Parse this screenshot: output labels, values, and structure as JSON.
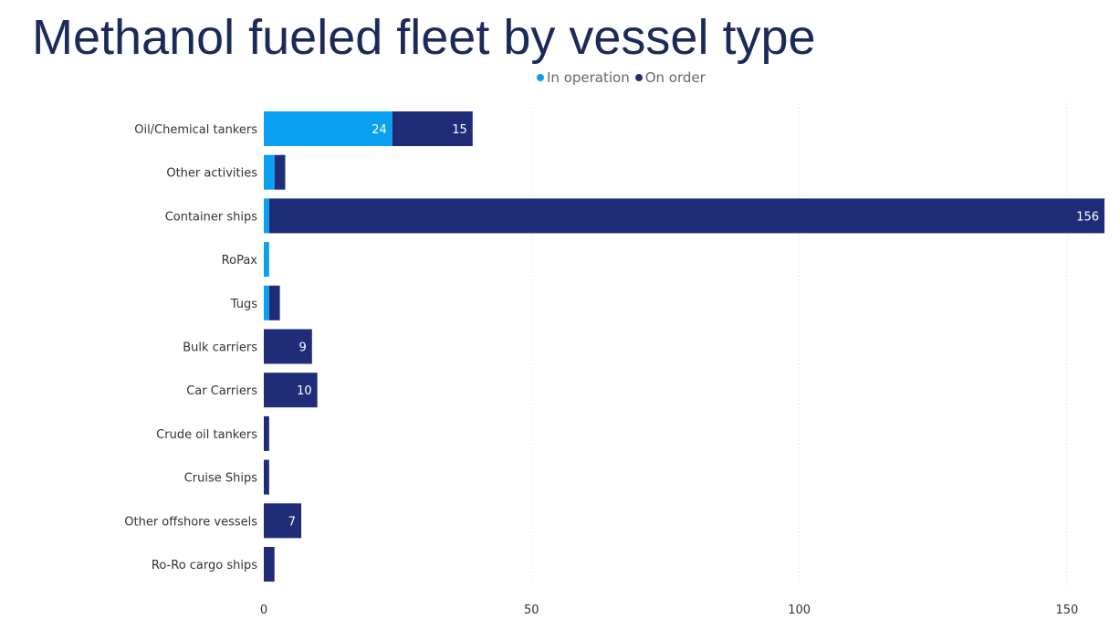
{
  "page": {
    "title": "Methanol fueled fleet by vessel type"
  },
  "colors": {
    "in_operation": "#0aa0f0",
    "on_order": "#1f2d78",
    "grid": "#dddddd"
  },
  "chart_data": {
    "type": "bar",
    "orientation": "horizontal",
    "stacked": true,
    "title": "Methanol fueled fleet by vessel type",
    "categories": [
      "Oil/Chemical tankers",
      "Other activities",
      "Container ships",
      "RoPax",
      "Tugs",
      "Bulk carriers",
      "Car Carriers",
      "Crude oil tankers",
      "Cruise Ships",
      "Other offshore vessels",
      "Ro-Ro cargo ships"
    ],
    "series": [
      {
        "name": "In operation",
        "color": "#0aa0f0",
        "values": [
          24,
          2,
          1,
          1,
          1,
          0,
          0,
          0,
          0,
          0,
          0
        ],
        "labels": [
          "24",
          "",
          "",
          "",
          "",
          "",
          "",
          "",
          "",
          "",
          ""
        ]
      },
      {
        "name": "On order",
        "color": "#1f2d78",
        "values": [
          15,
          2,
          156,
          0,
          2,
          9,
          10,
          1,
          1,
          7,
          2
        ],
        "labels": [
          "15",
          "",
          "156",
          "",
          "",
          "9",
          "10",
          "",
          "",
          "7",
          ""
        ]
      }
    ],
    "x_ticks": [
      0,
      50,
      100,
      150
    ],
    "xlim": [
      0,
      157
    ],
    "legend_position": "top-center",
    "grid": "vertical dotted"
  }
}
